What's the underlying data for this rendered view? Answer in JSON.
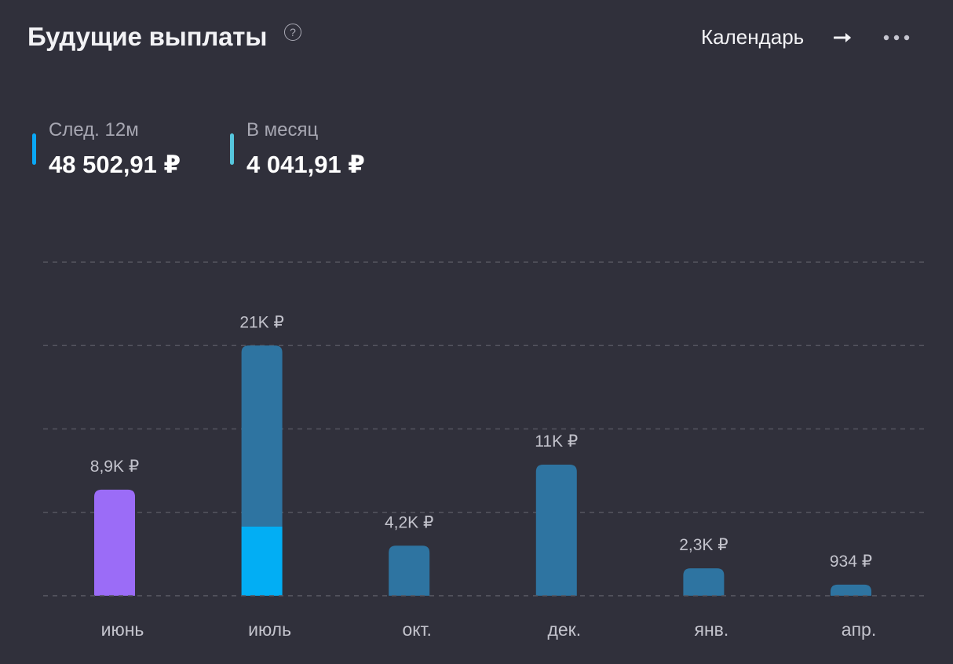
{
  "header": {
    "title": "Будущие выплаты",
    "help": "?",
    "calendar_label": "Календарь",
    "arrow_icon": "arrow-right-icon",
    "more_icon": "more-horizontal-icon"
  },
  "stats": [
    {
      "label": "След. 12м",
      "value": "48 502,91 ₽",
      "color": "#0aa7f5"
    },
    {
      "label": "В месяц",
      "value": "4 041,91 ₽",
      "color": "#56c6dd"
    }
  ],
  "colors": {
    "background": "#30303b",
    "bar_default": "#2e74a1",
    "bar_current": "#9b6cf7",
    "bar_highlight": "#02aef4",
    "grid": "#55555f",
    "value_label": "#c3c3cc",
    "axis_label": "#c3c3cc"
  },
  "chart_data": {
    "type": "bar",
    "stacked": true,
    "categories": [
      "июнь",
      "июль",
      "окт.",
      "дек.",
      "янв.",
      "апр."
    ],
    "value_labels": [
      "8,9K ₽",
      "21K ₽",
      "4,2K ₽",
      "11K ₽",
      "2,3K ₽",
      "934 ₽"
    ],
    "values": [
      8900,
      21000,
      4200,
      11000,
      2300,
      934
    ],
    "series": [
      {
        "values": [
          8900,
          5800,
          0,
          0,
          0,
          0
        ]
      },
      {
        "values": [
          0,
          15200,
          4200,
          11000,
          2300,
          934
        ]
      }
    ],
    "ylim": [
      0,
      28000
    ],
    "grid": true,
    "gridlines": 5,
    "legend": "none"
  }
}
